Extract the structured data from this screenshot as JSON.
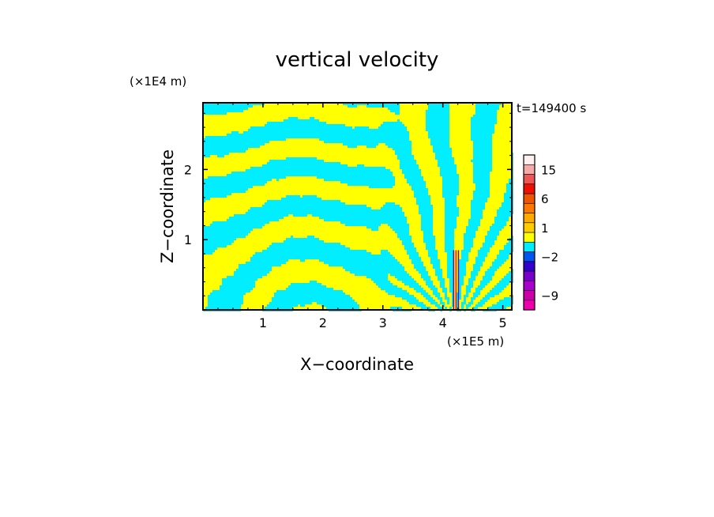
{
  "chart_data": {
    "type": "heatmap",
    "title": "vertical velocity",
    "xlabel": "X−coordinate",
    "ylabel": "Z−coordinate",
    "x_unit": "(×1E5 m)",
    "y_unit": "(×1E4 m)",
    "time_label": "t=149400 s",
    "xlim": [
      0,
      5.15
    ],
    "ylim": [
      0,
      2.95
    ],
    "x_ticks": [
      {
        "value": 1,
        "label": "1"
      },
      {
        "value": 2,
        "label": "2"
      },
      {
        "value": 3,
        "label": "3"
      },
      {
        "value": 4,
        "label": "4"
      },
      {
        "value": 5,
        "label": "5"
      }
    ],
    "y_ticks": [
      {
        "value": 1,
        "label": "1"
      },
      {
        "value": 2,
        "label": "2"
      }
    ],
    "colorbar": {
      "levels": [
        {
          "color": "#ee00aa"
        },
        {
          "color": "#cc00aa"
        },
        {
          "color": "#aa00cc"
        },
        {
          "color": "#7700cc"
        },
        {
          "color": "#3300cc"
        },
        {
          "color": "#0055ee"
        },
        {
          "color": "#00eeff"
        },
        {
          "color": "#ffff00"
        },
        {
          "color": "#ffcc00"
        },
        {
          "color": "#ffaa00"
        },
        {
          "color": "#ff7700"
        },
        {
          "color": "#ee5500"
        },
        {
          "color": "#ee1100"
        },
        {
          "color": "#ee5555"
        },
        {
          "color": "#f5aaaa"
        },
        {
          "color": "#fff0f0"
        }
      ],
      "tick_labels": [
        {
          "label": "15",
          "level_index": 14
        },
        {
          "label": "6",
          "level_index": 11
        },
        {
          "label": "1",
          "level_index": 8
        },
        {
          "label": "−2",
          "level_index": 5
        },
        {
          "label": "−9",
          "level_index": 1
        }
      ]
    },
    "field_colors": {
      "positive": "#ffff00",
      "negative": "#00eeff",
      "strong_positive": "#ee1100",
      "strong_negative": "#7700cc"
    },
    "grid": false,
    "legend": "colorbar-right"
  }
}
